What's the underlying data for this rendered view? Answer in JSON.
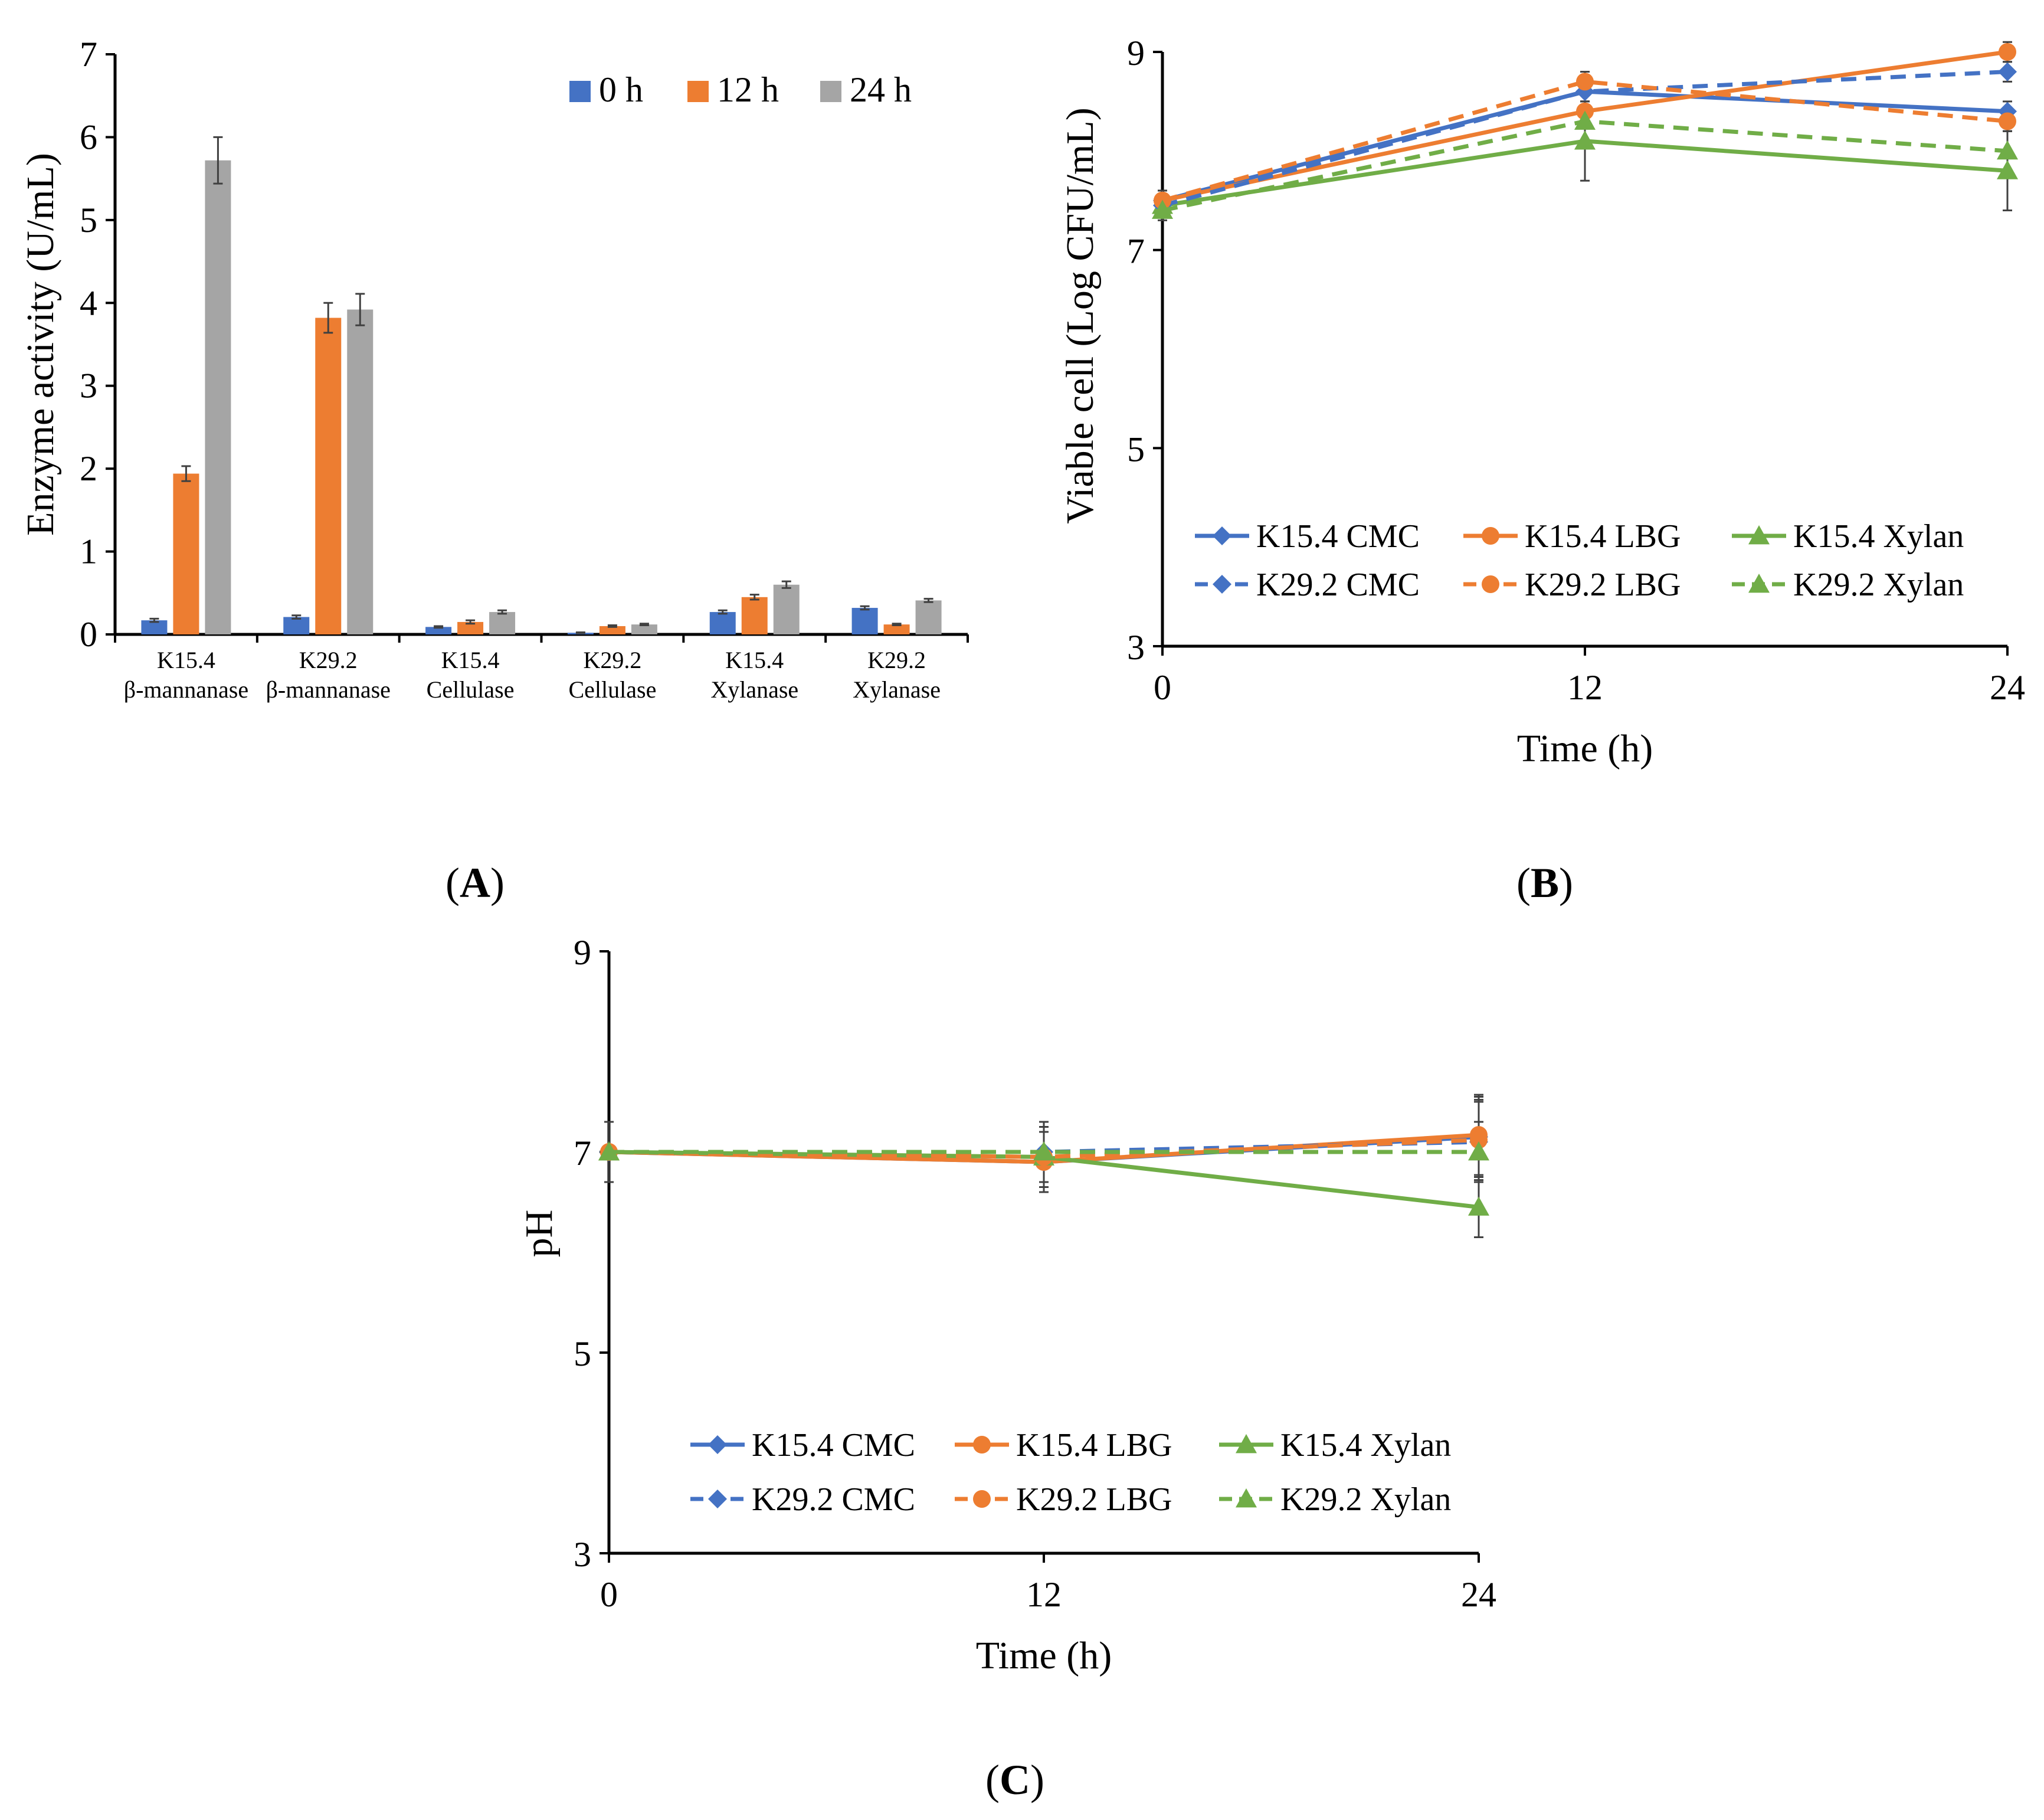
{
  "colors": {
    "blue": "#4472C4",
    "orange": "#ED7D31",
    "gray": "#A5A5A5",
    "green": "#70AD47"
  },
  "panel_labels": {
    "a": {
      "open": "(",
      "letter": "A",
      "close": ")"
    },
    "b": {
      "open": "(",
      "letter": "B",
      "close": ")"
    },
    "c": {
      "open": "(",
      "letter": "C",
      "close": ")"
    }
  },
  "chart_data": [
    {
      "id": "A",
      "type": "bar",
      "title": "",
      "xlabel": "",
      "ylabel": "Enzyme activity (U/mL)",
      "ylim": [
        0,
        7
      ],
      "yticks": [
        "0",
        "1",
        "2",
        "3",
        "4",
        "5",
        "6",
        "7"
      ],
      "legend_position": "top-right",
      "categories": [
        [
          "K15.4",
          "β-mannanase"
        ],
        [
          "K29.2",
          "β-mannanase"
        ],
        [
          "K15.4",
          "Cellulase"
        ],
        [
          "K29.2",
          "Cellulase"
        ],
        [
          "K15.4",
          "Xylanase"
        ],
        [
          "K29.2",
          "Xylanase"
        ]
      ],
      "series": [
        {
          "name": "0 h",
          "color": "#4472C4",
          "values": [
            0.17,
            0.21,
            0.09,
            0.02,
            0.27,
            0.32
          ],
          "errors": [
            0.02,
            0.02,
            0.01,
            0.005,
            0.02,
            0.02
          ]
        },
        {
          "name": "12 h",
          "color": "#ED7D31",
          "values": [
            1.94,
            3.82,
            0.15,
            0.1,
            0.45,
            0.12
          ],
          "errors": [
            0.09,
            0.18,
            0.02,
            0.01,
            0.03,
            0.01
          ]
        },
        {
          "name": "24 h",
          "color": "#A5A5A5",
          "values": [
            5.72,
            3.92,
            0.27,
            0.12,
            0.6,
            0.41
          ],
          "errors": [
            0.28,
            0.19,
            0.02,
            0.01,
            0.04,
            0.02
          ]
        }
      ]
    },
    {
      "id": "B",
      "type": "line",
      "title": "",
      "xlabel": "Time (h)",
      "ylabel": "Viable cell (Log CFU/mL)",
      "x": [
        0,
        12,
        24
      ],
      "xticks": [
        "0",
        "12",
        "24"
      ],
      "ylim": [
        3,
        9
      ],
      "yticks": [
        "3",
        "5",
        "7",
        "9"
      ],
      "legend_position": "bottom-center",
      "series": [
        {
          "name": "K15.4 CMC",
          "color": "#4472C4",
          "marker": "diamond",
          "dash": false,
          "values": [
            7.5,
            8.6,
            8.4
          ],
          "errors": [
            0.1,
            0.1,
            0.1
          ]
        },
        {
          "name": "K15.4 LBG",
          "color": "#ED7D31",
          "marker": "circle",
          "dash": false,
          "values": [
            7.5,
            8.4,
            9.0
          ],
          "errors": [
            0.1,
            0.1,
            0.1
          ]
        },
        {
          "name": "K15.4 Xylan",
          "color": "#70AD47",
          "marker": "triangle",
          "dash": false,
          "values": [
            7.45,
            8.1,
            7.8
          ],
          "errors": [
            0.1,
            0.4,
            0.4
          ]
        },
        {
          "name": "K29.2 CMC",
          "color": "#4472C4",
          "marker": "diamond",
          "dash": true,
          "values": [
            7.45,
            8.6,
            8.8
          ],
          "errors": [
            0.1,
            0.1,
            0.1
          ]
        },
        {
          "name": "K29.2 LBG",
          "color": "#ED7D31",
          "marker": "circle",
          "dash": true,
          "values": [
            7.5,
            8.7,
            8.3
          ],
          "errors": [
            0.1,
            0.1,
            0.1
          ]
        },
        {
          "name": "K29.2 Xylan",
          "color": "#70AD47",
          "marker": "triangle",
          "dash": true,
          "values": [
            7.4,
            8.3,
            8.0
          ],
          "errors": [
            0.1,
            0.2,
            0.2
          ]
        }
      ]
    },
    {
      "id": "C",
      "type": "line",
      "title": "",
      "xlabel": "Time (h)",
      "ylabel": "pH",
      "x": [
        0,
        12,
        24
      ],
      "xticks": [
        "0",
        "12",
        "24"
      ],
      "ylim": [
        3,
        9
      ],
      "yticks": [
        "3",
        "5",
        "7",
        "9"
      ],
      "legend_position": "bottom-center",
      "series": [
        {
          "name": "K15.4 CMC",
          "color": "#4472C4",
          "marker": "diamond",
          "dash": false,
          "values": [
            7.0,
            6.9,
            7.15
          ],
          "errors": [
            0.3,
            0.3,
            0.4
          ]
        },
        {
          "name": "K15.4 LBG",
          "color": "#ED7D31",
          "marker": "circle",
          "dash": false,
          "values": [
            7.0,
            6.9,
            7.17
          ],
          "errors": [
            0.3,
            0.3,
            0.4
          ]
        },
        {
          "name": "K15.4 Xylan",
          "color": "#70AD47",
          "marker": "triangle",
          "dash": false,
          "values": [
            7.0,
            6.95,
            6.45
          ],
          "errors": [
            0.3,
            0.3,
            0.3
          ]
        },
        {
          "name": "K29.2 CMC",
          "color": "#4472C4",
          "marker": "diamond",
          "dash": true,
          "values": [
            7.0,
            7.0,
            7.1
          ],
          "errors": [
            0.3,
            0.3,
            0.4
          ]
        },
        {
          "name": "K29.2 LBG",
          "color": "#ED7D31",
          "marker": "circle",
          "dash": true,
          "values": [
            7.0,
            6.95,
            7.12
          ],
          "errors": [
            0.3,
            0.3,
            0.4
          ]
        },
        {
          "name": "K29.2 Xylan",
          "color": "#70AD47",
          "marker": "triangle",
          "dash": true,
          "values": [
            7.0,
            7.0,
            7.0
          ],
          "errors": [
            0.3,
            0.3,
            0.3
          ]
        }
      ]
    }
  ]
}
